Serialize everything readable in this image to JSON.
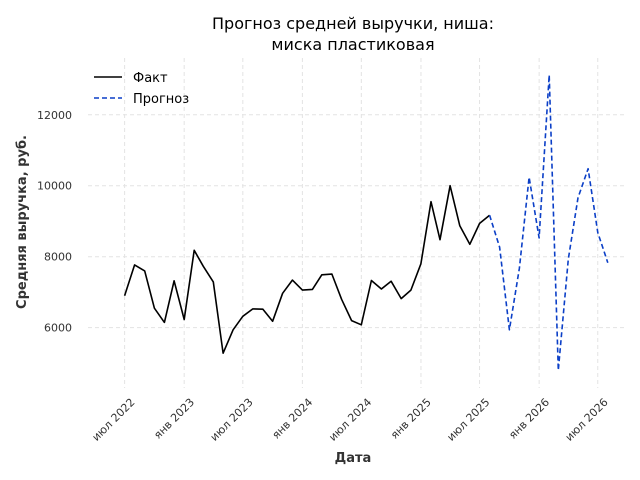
{
  "chart_data": {
    "type": "line",
    "title_lines": [
      "Прогноз средней выручки, ниша:",
      "миска пластиковая"
    ],
    "xlabel": "Дата",
    "ylabel": "Средняя выручка, руб.",
    "xlim": [
      "2022-03-10",
      "2026-09-20"
    ],
    "ylim": [
      4300,
      13600
    ],
    "yticks": [
      6000,
      8000,
      10000,
      12000
    ],
    "xticks": [
      {
        "date": "2022-07-01",
        "label": "июл 2022"
      },
      {
        "date": "2023-01-01",
        "label": "янв 2023"
      },
      {
        "date": "2023-07-01",
        "label": "июл 2023"
      },
      {
        "date": "2024-01-01",
        "label": "янв 2024"
      },
      {
        "date": "2024-07-01",
        "label": "июл 2024"
      },
      {
        "date": "2025-01-01",
        "label": "янв 2025"
      },
      {
        "date": "2025-07-01",
        "label": "июл 2025"
      },
      {
        "date": "2026-01-01",
        "label": "янв 2026"
      },
      {
        "date": "2026-07-01",
        "label": "июл 2026"
      }
    ],
    "grid": true,
    "legend_position": "top-left",
    "series": [
      {
        "name": "Факт",
        "color": "#000000",
        "style": "solid",
        "x": [
          "2022-07-01",
          "2022-08-01",
          "2022-09-01",
          "2022-10-01",
          "2022-11-01",
          "2022-12-01",
          "2023-01-01",
          "2023-02-01",
          "2023-03-01",
          "2023-04-01",
          "2023-05-01",
          "2023-06-01",
          "2023-07-01",
          "2023-08-01",
          "2023-09-01",
          "2023-10-01",
          "2023-11-01",
          "2023-12-01",
          "2024-01-01",
          "2024-02-01",
          "2024-03-01",
          "2024-04-01",
          "2024-05-01",
          "2024-06-01",
          "2024-07-01",
          "2024-08-01",
          "2024-09-01",
          "2024-10-01",
          "2024-11-01",
          "2024-12-01",
          "2025-01-01",
          "2025-02-01",
          "2025-03-01",
          "2025-04-01",
          "2025-05-01",
          "2025-06-01",
          "2025-07-01",
          "2025-08-01"
        ],
        "y": [
          6900,
          7770,
          7600,
          6550,
          6150,
          7320,
          6230,
          8180,
          7730,
          7290,
          5280,
          5940,
          6320,
          6530,
          6520,
          6180,
          6970,
          7340,
          7060,
          7080,
          7490,
          7510,
          6800,
          6200,
          6080,
          7330,
          7090,
          7310,
          6820,
          7060,
          7800,
          9550,
          8480,
          10000,
          8870,
          8350,
          8940,
          9170
        ]
      },
      {
        "name": "Прогноз",
        "color": "#0b3fc7",
        "style": "dashed",
        "x": [
          "2025-08-01",
          "2025-09-01",
          "2025-10-01",
          "2025-11-01",
          "2025-12-01",
          "2026-01-01",
          "2026-02-01",
          "2026-03-01",
          "2026-04-01",
          "2026-05-01",
          "2026-06-01",
          "2026-07-01",
          "2026-08-01"
        ],
        "y": [
          9170,
          8270,
          5940,
          7680,
          10240,
          8530,
          13120,
          4800,
          7930,
          9660,
          10480,
          8680,
          7830
        ]
      }
    ]
  }
}
